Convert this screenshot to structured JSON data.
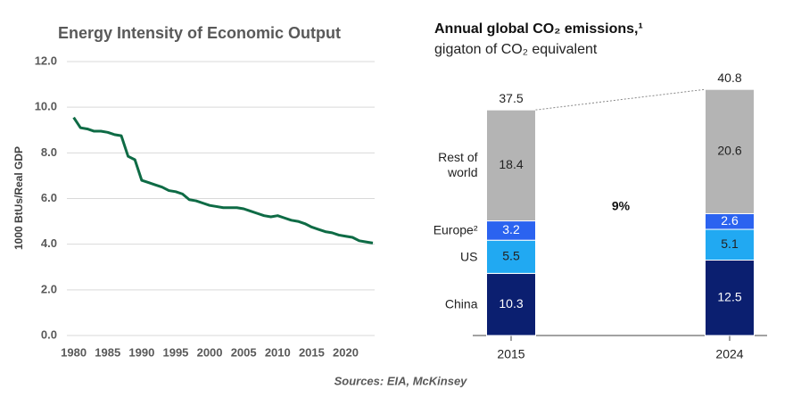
{
  "chart_data": [
    {
      "type": "line",
      "title": "Energy Intensity of Economic Output",
      "ylabel": "1000 BtUs/Real GDP",
      "x": [
        1980,
        1981,
        1982,
        1983,
        1984,
        1985,
        1986,
        1987,
        1988,
        1989,
        1990,
        1991,
        1992,
        1993,
        1994,
        1995,
        1996,
        1997,
        1998,
        1999,
        2000,
        2001,
        2002,
        2003,
        2004,
        2005,
        2006,
        2007,
        2008,
        2009,
        2010,
        2011,
        2012,
        2013,
        2014,
        2015,
        2016,
        2017,
        2018,
        2019,
        2020,
        2021,
        2022,
        2023,
        2024
      ],
      "series": [
        {
          "name": null,
          "color": "#0e6b45",
          "values": [
            9.55,
            9.1,
            9.05,
            8.95,
            8.95,
            8.9,
            8.8,
            8.75,
            7.85,
            7.7,
            6.8,
            6.7,
            6.6,
            6.5,
            6.35,
            6.3,
            6.2,
            5.95,
            5.9,
            5.8,
            5.7,
            5.65,
            5.6,
            5.6,
            5.6,
            5.55,
            5.45,
            5.35,
            5.25,
            5.2,
            5.25,
            5.15,
            5.05,
            5.0,
            4.9,
            4.75,
            4.65,
            4.55,
            4.5,
            4.4,
            4.35,
            4.3,
            4.15,
            4.1,
            4.05
          ]
        }
      ],
      "xlim": [
        1979,
        2024
      ],
      "xticks": [
        1980,
        1985,
        1990,
        1995,
        2000,
        2005,
        2010,
        2015,
        2020
      ],
      "ylim": [
        0,
        12
      ],
      "yticks": [
        {
          "value": 0,
          "label": "0.0"
        },
        {
          "value": 2,
          "label": "2.0"
        },
        {
          "value": 4,
          "label": "4.0"
        },
        {
          "value": 6,
          "label": "6.0"
        },
        {
          "value": 8,
          "label": "8.0"
        },
        {
          "value": 10,
          "label": "10.0"
        },
        {
          "value": 12,
          "label": "12.0"
        }
      ],
      "grid": true
    },
    {
      "type": "bar",
      "stacked": true,
      "title": "Annual global CO₂ emissions,¹",
      "subtitle": "gigaton of CO₂ equivalent",
      "categories": [
        "2015",
        "2024"
      ],
      "series": [
        {
          "name": "China",
          "color": "#0b1f70",
          "values": [
            10.3,
            12.5
          ]
        },
        {
          "name": "US",
          "color": "#21a9f2",
          "values": [
            5.5,
            5.1
          ]
        },
        {
          "name": "Europe²",
          "color": "#2b63f0",
          "values": [
            3.2,
            2.6
          ]
        },
        {
          "name": "Rest of world",
          "color": "#b4b4b4",
          "values": [
            18.4,
            20.6
          ]
        }
      ],
      "totals": [
        37.5,
        40.8
      ],
      "annotation": "9%"
    }
  ],
  "source": "Sources: EIA, McKinsey"
}
